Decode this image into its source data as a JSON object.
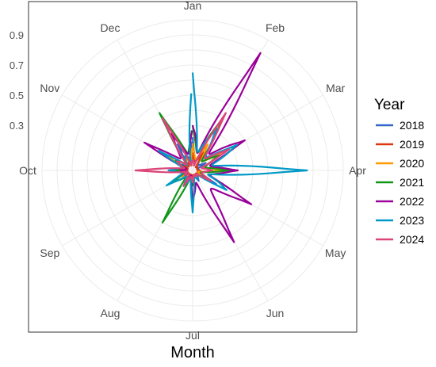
{
  "chart_data": {
    "type": "line",
    "coordinate_system": "polar",
    "xlabel": "Month",
    "ylabel": "",
    "categories": [
      "Jan",
      "Feb",
      "Mar",
      "Apr",
      "May",
      "Jun",
      "Jul",
      "Aug",
      "Sep",
      "Oct",
      "Nov",
      "Dec"
    ],
    "radial_ticks": [
      "0.3",
      "0.5",
      "0.7",
      "0.9"
    ],
    "radial_tick_values": [
      0.3,
      0.5,
      0.7,
      0.9
    ],
    "rlim": [
      0,
      1.0
    ],
    "grid": true,
    "legend": {
      "title": "Year",
      "position": "right"
    },
    "series": [
      {
        "name": "2018",
        "color": "#3366CC",
        "values": [
          0.22,
          0.12,
          0.1,
          0.05,
          0.18,
          0.08,
          0.05,
          0.04,
          0.07,
          0.1,
          0.08,
          0.2
        ]
      },
      {
        "name": "2019",
        "color": "#DC3912",
        "values": [
          0.12,
          0.14,
          0.04,
          0.05,
          0.05,
          0.04,
          0.05,
          0.04,
          0.05,
          0.05,
          0.06,
          0.06
        ]
      },
      {
        "name": "2020",
        "color": "#FF9900",
        "values": [
          0.18,
          0.2,
          0.22,
          0.2,
          0.06,
          0.06,
          0.07,
          0.08,
          0.08,
          0.12,
          0.22,
          0.1
        ]
      },
      {
        "name": "2021",
        "color": "#109618",
        "values": [
          0.3,
          0.42,
          0.2,
          0.26,
          0.11,
          0.06,
          0.1,
          0.4,
          0.15,
          0.12,
          0.13,
          0.44
        ]
      },
      {
        "name": "2022",
        "color": "#990099",
        "values": [
          0.3,
          0.9,
          0.4,
          0.3,
          0.45,
          0.55,
          0.2,
          0.06,
          0.06,
          0.08,
          0.37,
          0.28
        ]
      },
      {
        "name": "2023",
        "color": "#0099C6",
        "values": [
          0.65,
          0.32,
          0.34,
          0.76,
          0.26,
          0.06,
          0.28,
          0.12,
          0.2,
          0.16,
          0.26,
          0.1
        ]
      },
      {
        "name": "2024",
        "color": "#DD4477",
        "values": [
          0.05,
          0.44,
          0.28,
          0.13,
          0.14,
          0.05,
          0.08,
          0.12,
          0.05,
          0.38,
          0.12,
          0.4
        ]
      }
    ]
  }
}
